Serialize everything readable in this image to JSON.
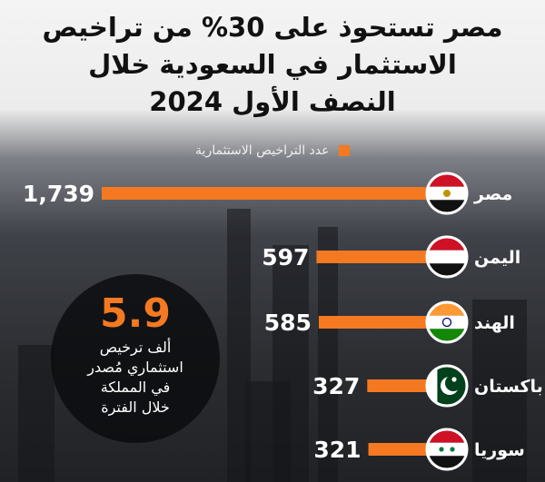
{
  "title_lines": [
    "مصر تستحوذ على 30% من تراخيص",
    "الاستثمار في السعودية خلال",
    "النصف الأول 2024"
  ],
  "legend_label": "عدد التراخيص الاستثمارية",
  "colors": {
    "bar": "#f47920",
    "title": "#111111",
    "label": "#ffffff"
  },
  "chart_data": {
    "type": "bar",
    "orientation": "horizontal",
    "title": "مصر تستحوذ على 30% من تراخيص الاستثمار في السعودية خلال النصف الأول 2024",
    "series": [
      {
        "name": "عدد التراخيص الاستثمارية",
        "values": [
          1739,
          597,
          585,
          327,
          321
        ]
      }
    ],
    "categories": [
      "مصر",
      "اليمن",
      "الهند",
      "باكستان",
      "سوريا"
    ],
    "value_labels": [
      "1,739",
      "597",
      "585",
      "327",
      "321"
    ],
    "flags": [
      "egypt-flag",
      "yemen-flag",
      "india-flag",
      "pakistan-flag",
      "syria-flag"
    ],
    "xlim": [
      0,
      1739
    ],
    "grid": false,
    "legend_position": "top"
  },
  "callout": {
    "value": "5.9",
    "lines": [
      "ألف ترخيص",
      "استثماري مُصدر",
      "في المملكة",
      "خلال الفترة"
    ]
  }
}
